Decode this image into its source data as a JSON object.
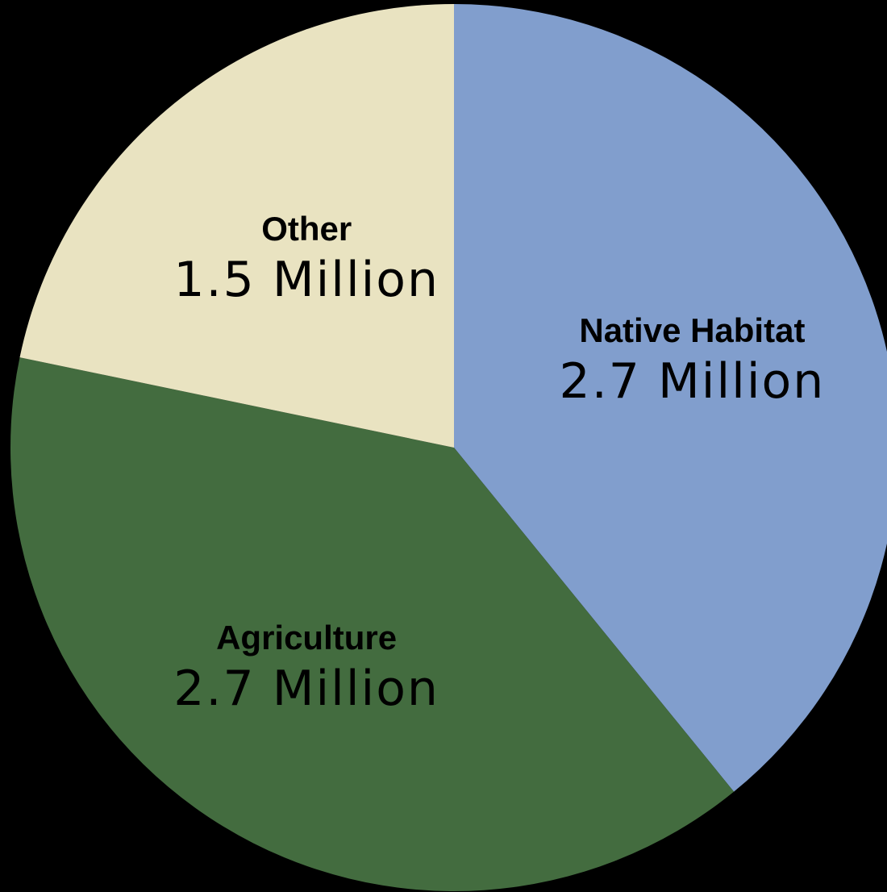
{
  "chart_data": {
    "type": "pie",
    "title": "",
    "start_angle_deg": 0,
    "direction": "clockwise",
    "legend": "none",
    "slices": [
      {
        "name": "Native Habitat",
        "value": 2.7,
        "value_label": "2.7 Million",
        "color": "#819ECD"
      },
      {
        "name": "Agriculture",
        "value": 2.7,
        "value_label": "2.7 Million",
        "color": "#436C3F"
      },
      {
        "name": "Other",
        "value": 1.5,
        "value_label": "1.5 Million",
        "color": "#E9E3C1"
      }
    ]
  }
}
